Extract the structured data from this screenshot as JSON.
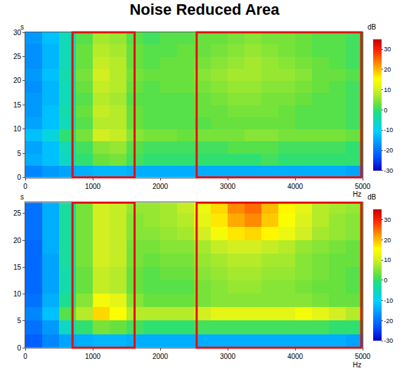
{
  "title": "Noise Reduced Area",
  "chart_data": [
    {
      "type": "heatmap",
      "x_label": "Hz",
      "y_label": "s",
      "colorbar_label": "dB",
      "grid": false,
      "x": [
        125,
        375,
        625,
        875,
        1125,
        1375,
        1625,
        1875,
        2125,
        2375,
        2625,
        2875,
        3125,
        3375,
        3625,
        3875,
        4125,
        4375,
        4625,
        4875
      ],
      "y": [
        1.25,
        3.75,
        6.25,
        8.75,
        11.25,
        13.75,
        16.25,
        18.75,
        21.25,
        23.75,
        26.25,
        28.75
      ],
      "cells": [
        [
          -18,
          -16,
          -15,
          -14,
          -13,
          -13,
          -14,
          -14,
          -14,
          -14,
          -14,
          -14,
          -14,
          -14,
          -14,
          -14,
          -14,
          -14,
          -14,
          -15
        ],
        [
          -14,
          -12,
          -6,
          0,
          3,
          4,
          1,
          0,
          0,
          0,
          0,
          0,
          0,
          0,
          1,
          0,
          0,
          0,
          0,
          0
        ],
        [
          -15,
          -12,
          -5,
          1,
          5,
          6,
          2,
          1,
          1,
          1,
          1,
          1,
          2,
          2,
          2,
          1,
          1,
          1,
          1,
          0
        ],
        [
          -12,
          -8,
          0,
          4,
          10,
          9,
          5,
          4,
          4,
          3,
          4,
          4,
          4,
          5,
          5,
          4,
          4,
          4,
          4,
          3
        ],
        [
          -15,
          -12,
          -5,
          2,
          8,
          8,
          3,
          2,
          2,
          2,
          2,
          3,
          3,
          3,
          3,
          3,
          2,
          2,
          2,
          1
        ],
        [
          -16,
          -12,
          -4,
          3,
          9,
          8,
          3,
          2,
          2,
          2,
          3,
          3,
          4,
          4,
          4,
          3,
          2,
          2,
          2,
          1
        ],
        [
          -16,
          -13,
          -5,
          2,
          8,
          7,
          2,
          2,
          2,
          2,
          3,
          4,
          5,
          5,
          4,
          4,
          3,
          2,
          2,
          1
        ],
        [
          -17,
          -13,
          -5,
          3,
          9,
          8,
          3,
          2,
          3,
          3,
          4,
          5,
          6,
          6,
          5,
          5,
          4,
          3,
          2,
          1
        ],
        [
          -16,
          -12,
          -4,
          4,
          10,
          8,
          4,
          3,
          3,
          3,
          5,
          6,
          7,
          7,
          6,
          6,
          5,
          3,
          3,
          2
        ],
        [
          -17,
          -13,
          -5,
          3,
          9,
          8,
          3,
          2,
          3,
          3,
          4,
          5,
          6,
          7,
          6,
          5,
          4,
          3,
          2,
          1
        ],
        [
          -17,
          -13,
          -5,
          3,
          8,
          7,
          3,
          2,
          2,
          3,
          3,
          4,
          5,
          6,
          5,
          4,
          3,
          2,
          2,
          1
        ],
        [
          -16,
          -12,
          -5,
          2,
          7,
          6,
          2,
          1,
          2,
          2,
          3,
          3,
          4,
          5,
          4,
          4,
          3,
          2,
          2,
          1
        ]
      ],
      "xlim": [
        0,
        5000
      ],
      "xticks": [
        0,
        1000,
        2000,
        3000,
        4000,
        5000
      ],
      "ylim": [
        0,
        30
      ],
      "yticks": [
        0,
        5,
        10,
        15,
        20,
        25,
        30
      ],
      "clim": [
        -30,
        35
      ],
      "cticks": [
        -30,
        -20,
        -10,
        0,
        10,
        20,
        30
      ],
      "highlight_x_ranges": [
        [
          700,
          1620
        ],
        [
          2540,
          4980
        ]
      ]
    },
    {
      "type": "heatmap",
      "x_label": "Hz",
      "y_label": "s",
      "colorbar_label": "dB",
      "grid": false,
      "x": [
        125,
        375,
        625,
        875,
        1125,
        1375,
        1625,
        1875,
        2125,
        2375,
        2625,
        2875,
        3125,
        3375,
        3625,
        3875,
        4125,
        4375,
        4625,
        4875
      ],
      "y": [
        1.25,
        3.75,
        6.25,
        8.75,
        11.25,
        13.75,
        16.25,
        18.75,
        21.25,
        23.75,
        26.25
      ],
      "cells": [
        [
          -22,
          -18,
          -15,
          -14,
          -13,
          -13,
          -14,
          -14,
          -14,
          -14,
          -14,
          -14,
          -14,
          -14,
          -14,
          -14,
          -14,
          -14,
          -14,
          -15
        ],
        [
          -20,
          -16,
          -6,
          0,
          4,
          3,
          1,
          0,
          0,
          0,
          1,
          1,
          1,
          1,
          1,
          1,
          1,
          1,
          0,
          0
        ],
        [
          -18,
          -12,
          2,
          8,
          18,
          15,
          8,
          8,
          8,
          8,
          10,
          12,
          12,
          12,
          12,
          12,
          14,
          12,
          10,
          8
        ],
        [
          -20,
          -14,
          -2,
          5,
          14,
          12,
          5,
          3,
          3,
          3,
          4,
          5,
          5,
          5,
          5,
          5,
          5,
          4,
          3,
          3
        ],
        [
          -21,
          -15,
          -4,
          3,
          9,
          8,
          3,
          2,
          2,
          2,
          4,
          5,
          6,
          6,
          5,
          5,
          4,
          3,
          3,
          2
        ],
        [
          -21,
          -15,
          -4,
          3,
          9,
          8,
          3,
          2,
          3,
          3,
          5,
          6,
          7,
          7,
          6,
          6,
          5,
          4,
          3,
          2
        ],
        [
          -21,
          -15,
          -3,
          4,
          10,
          9,
          4,
          3,
          4,
          4,
          6,
          7,
          8,
          8,
          7,
          7,
          5,
          4,
          3,
          3
        ],
        [
          -21,
          -14,
          -3,
          4,
          10,
          9,
          4,
          4,
          5,
          5,
          7,
          9,
          10,
          10,
          9,
          8,
          6,
          5,
          4,
          3
        ],
        [
          -20,
          -14,
          -3,
          4,
          10,
          9,
          5,
          5,
          6,
          7,
          10,
          14,
          17,
          18,
          16,
          13,
          10,
          7,
          6,
          5
        ],
        [
          -20,
          -14,
          -3,
          4,
          10,
          9,
          5,
          6,
          7,
          8,
          12,
          17,
          21,
          23,
          19,
          15,
          11,
          8,
          6,
          5
        ],
        [
          -20,
          -14,
          -3,
          4,
          10,
          9,
          6,
          6,
          7,
          9,
          13,
          18,
          23,
          25,
          20,
          16,
          12,
          8,
          7,
          6
        ]
      ],
      "xlim": [
        0,
        5000
      ],
      "xticks": [
        0,
        1000,
        2000,
        3000,
        4000,
        5000
      ],
      "ylim": [
        0,
        27
      ],
      "yticks": [
        0,
        5,
        10,
        15,
        20,
        25
      ],
      "clim": [
        -30,
        35
      ],
      "cticks": [
        -30,
        -20,
        -10,
        0,
        10,
        20,
        30
      ],
      "highlight_x_ranges": [
        [
          700,
          1620
        ],
        [
          2540,
          4980
        ]
      ]
    }
  ]
}
